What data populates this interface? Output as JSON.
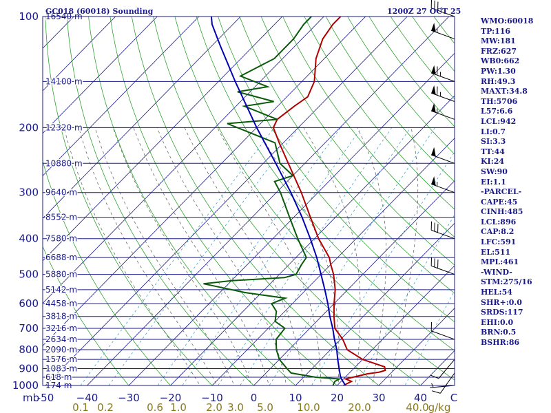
{
  "header": {
    "title": "GC018 (60018) Sounding",
    "time": "1200Z 27 OCT 25"
  },
  "colors": {
    "background": "#ffffff",
    "isobar": "#1a1a8c",
    "isotherm": "#1a1a8c",
    "dry_adiabat": "#2ea32e",
    "moist_adiabat": "#6a6a6a",
    "mixing_ratio": "#3aa0c8",
    "temperature": "#b00000",
    "dewpoint": "#0a5a0a",
    "parcel": "#0000b0",
    "wind_barb": "#000000",
    "axis_text": "#1a1a8c",
    "mixing_text": "#8a7a20"
  },
  "chart_data": {
    "type": "line",
    "title": "GC018 (60018) Sounding",
    "ylabel": "mb",
    "xlabel": "C",
    "p_range": [
      1000,
      100
    ],
    "t_range": [
      -50,
      50
    ],
    "pressure_ticks": [
      100,
      200,
      300,
      400,
      500,
      600,
      700,
      800,
      900,
      1000
    ],
    "temp_ticks": [
      -50,
      -40,
      -30,
      -20,
      -10,
      0,
      10,
      20,
      30,
      40
    ],
    "temp_tick_labels": [
      "-50",
      "−40",
      "−30",
      "−20",
      "−10",
      "0",
      "10",
      "20",
      "30",
      "40"
    ],
    "height_labels": [
      {
        "p": 100,
        "label": "16540 m"
      },
      {
        "p": 150,
        "label": "14100 m"
      },
      {
        "p": 200,
        "label": "12320 m"
      },
      {
        "p": 250,
        "label": "10880 m"
      },
      {
        "p": 300,
        "label": "9640 m"
      },
      {
        "p": 350,
        "label": "8552 m"
      },
      {
        "p": 400,
        "label": "7580 m"
      },
      {
        "p": 450,
        "label": "6688 m"
      },
      {
        "p": 500,
        "label": "5880 m"
      },
      {
        "p": 550,
        "label": "5142 m"
      },
      {
        "p": 600,
        "label": "4458 m"
      },
      {
        "p": 650,
        "label": "3818 m"
      },
      {
        "p": 700,
        "label": "3216 m"
      },
      {
        "p": 750,
        "label": "2634 m"
      },
      {
        "p": 800,
        "label": "2090 m"
      },
      {
        "p": 850,
        "label": "1576 m"
      },
      {
        "p": 900,
        "label": "1083 m"
      },
      {
        "p": 950,
        "label": "618 m"
      },
      {
        "p": 1000,
        "label": "174 m"
      }
    ],
    "mixing_ratio_labels": [
      "0.1",
      "0.2",
      "0.6",
      "1.0",
      "2.0",
      "3.0",
      "5.0",
      "10.0",
      "20.0",
      "40.0"
    ],
    "mixing_ratio_units": "g/kg",
    "mixing_ratios": [
      0.1,
      0.2,
      0.6,
      1.0,
      2.0,
      3.0,
      5.0,
      10.0,
      20.0,
      40.0
    ],
    "series": [
      {
        "name": "Temperature",
        "points": [
          [
            1000,
            21.5
          ],
          [
            975,
            22.5
          ],
          [
            960,
            20.5
          ],
          [
            930,
            24.5
          ],
          [
            920,
            27
          ],
          [
            910,
            28
          ],
          [
            890,
            27
          ],
          [
            850,
            20
          ],
          [
            800,
            14
          ],
          [
            750,
            10.5
          ],
          [
            700,
            6
          ],
          [
            650,
            3
          ],
          [
            600,
            0
          ],
          [
            550,
            -3
          ],
          [
            500,
            -7
          ],
          [
            470,
            -10
          ],
          [
            450,
            -12
          ],
          [
            400,
            -19
          ],
          [
            350,
            -26
          ],
          [
            300,
            -34
          ],
          [
            250,
            -44
          ],
          [
            220,
            -51
          ],
          [
            200,
            -56
          ],
          [
            190,
            -57
          ],
          [
            175,
            -56
          ],
          [
            165,
            -55
          ],
          [
            150,
            -57
          ],
          [
            130,
            -62
          ],
          [
            115,
            -65
          ],
          [
            105,
            -66
          ],
          [
            100,
            -66
          ]
        ]
      },
      {
        "name": "Dewpoint",
        "points": [
          [
            1000,
            19
          ],
          [
            975,
            18.5
          ],
          [
            960,
            19
          ],
          [
            950,
            13
          ],
          [
            925,
            6
          ],
          [
            900,
            4
          ],
          [
            850,
            0
          ],
          [
            800,
            -3
          ],
          [
            750,
            -5.5
          ],
          [
            700,
            -6
          ],
          [
            670,
            -10
          ],
          [
            630,
            -12
          ],
          [
            600,
            -15
          ],
          [
            580,
            -13
          ],
          [
            560,
            -24
          ],
          [
            530,
            -36
          ],
          [
            520,
            -30
          ],
          [
            510,
            -18
          ],
          [
            500,
            -16
          ],
          [
            470,
            -17
          ],
          [
            450,
            -17.5
          ],
          [
            400,
            -24
          ],
          [
            350,
            -31
          ],
          [
            300,
            -39
          ],
          [
            280,
            -43
          ],
          [
            270,
            -40
          ],
          [
            250,
            -46
          ],
          [
            220,
            -52
          ],
          [
            195,
            -68
          ],
          [
            190,
            -57
          ],
          [
            175,
            -68
          ],
          [
            170,
            -62
          ],
          [
            160,
            -73
          ],
          [
            155,
            -67
          ],
          [
            145,
            -76
          ],
          [
            130,
            -72
          ],
          [
            115,
            -72
          ],
          [
            105,
            -73
          ],
          [
            100,
            -73
          ]
        ]
      },
      {
        "name": "Parcel",
        "points": [
          [
            1000,
            22
          ],
          [
            960,
            19.5
          ],
          [
            942,
            18.5
          ],
          [
            900,
            16.5
          ],
          [
            850,
            14
          ],
          [
            800,
            11.5
          ],
          [
            750,
            8.5
          ],
          [
            700,
            5.5
          ],
          [
            650,
            2
          ],
          [
            600,
            -1.5
          ],
          [
            550,
            -5.5
          ],
          [
            500,
            -10
          ],
          [
            450,
            -15
          ],
          [
            400,
            -21
          ],
          [
            350,
            -28
          ],
          [
            300,
            -36.5
          ],
          [
            250,
            -47
          ],
          [
            200,
            -60
          ],
          [
            150,
            -76
          ],
          [
            120,
            -88
          ],
          [
            105,
            -95
          ],
          [
            100,
            -97
          ]
        ]
      }
    ],
    "wind_barbs": [
      {
        "p": 100,
        "dir": 290,
        "spd": 35
      },
      {
        "p": 115,
        "dir": 290,
        "spd": 55
      },
      {
        "p": 150,
        "dir": 290,
        "spd": 65
      },
      {
        "p": 170,
        "dir": 290,
        "spd": 65
      },
      {
        "p": 190,
        "dir": 290,
        "spd": 55
      },
      {
        "p": 250,
        "dir": 290,
        "spd": 50
      },
      {
        "p": 300,
        "dir": 290,
        "spd": 55
      },
      {
        "p": 400,
        "dir": 290,
        "spd": 30
      },
      {
        "p": 500,
        "dir": 290,
        "spd": 30
      },
      {
        "p": 750,
        "dir": 290,
        "spd": 10
      },
      {
        "p": 850,
        "dir": 220,
        "spd": 10
      },
      {
        "p": 925,
        "dir": 215,
        "spd": 10
      },
      {
        "p": 1000,
        "dir": 265,
        "spd": 5
      }
    ]
  },
  "stats": [
    "WMO:60018",
    "TP:116",
    "MW:181",
    "FRZ:627",
    "WB0:662",
    "PW:1.30",
    "RH:49.3",
    "MAXT:34.8",
    "TH:5706",
    "L57:6.6",
    "LCL:942",
    "LI:0.7",
    "SI:3.3",
    "TT:44",
    "KI:24",
    "SW:90",
    "EI:1.1",
    "-PARCEL-",
    "CAPE:45",
    "CINH:485",
    "LCL:896",
    "CAP:8.2",
    "LFC:591",
    "EL:511",
    "MPL:461",
    "-WIND-",
    "STM:275/16",
    "HEL:54",
    "SHR+:0.0",
    "SRDS:117",
    "EHI:0.0",
    "BRN:0.5",
    "BSHR:86"
  ]
}
